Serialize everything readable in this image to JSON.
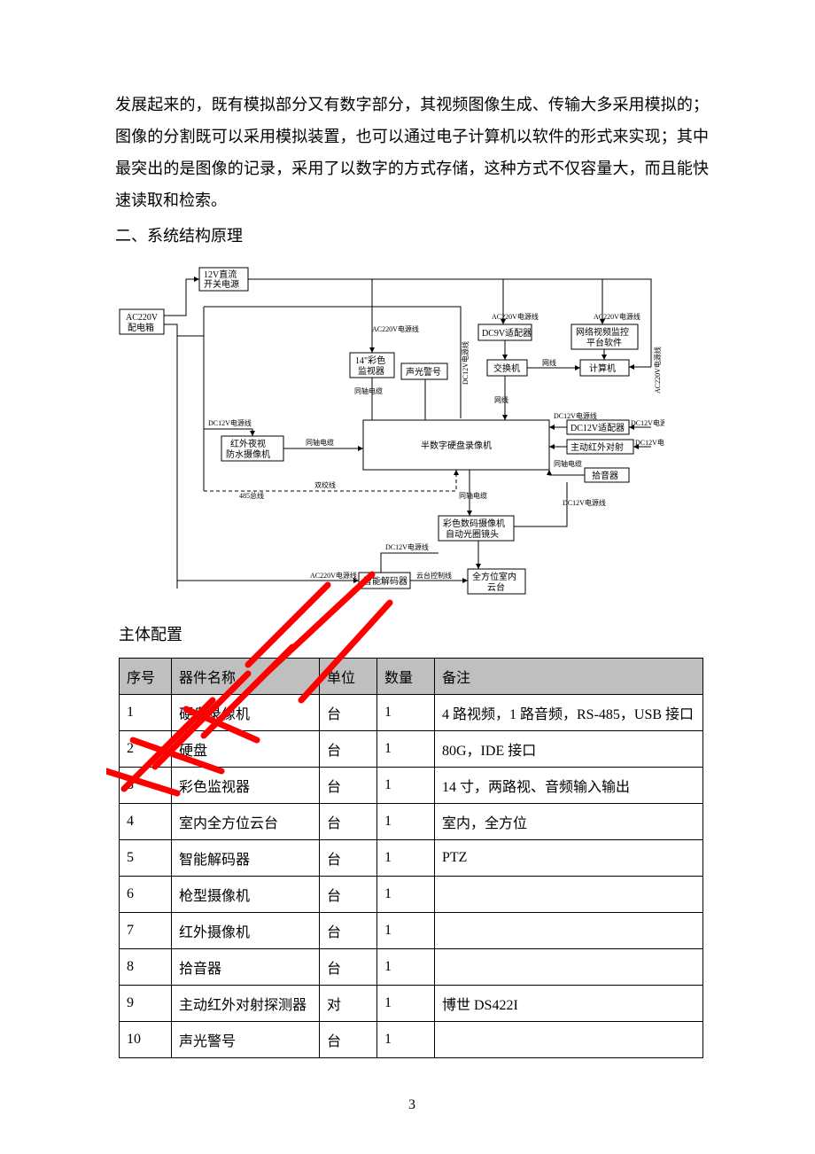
{
  "paragraph": "发展起来的，既有模拟部分又有数字部分，其视频图像生成、传输大多采用模拟的；图像的分割既可以采用模拟装置，也可以通过电子计算机以软件的形式来实现；其中最突出的是图像的记录，采用了以数字的方式存储，这种方式不仅容量大，而且能快速读取和检索。",
  "section_heading": "二、系统结构原理",
  "sub_heading": "主体配置",
  "page_number": "3",
  "diagram": {
    "boxes": {
      "power_box": {
        "label1": "AC220V",
        "label2": "配电箱"
      },
      "dc12v_supply": {
        "label1": "12V直流",
        "label2": "开关电源"
      },
      "monitor": {
        "label1": "14\"彩色",
        "label2": "监视器"
      },
      "alarm_sl": {
        "label": "声光警号"
      },
      "dc9v_adapter": {
        "label": "DC9V适配器"
      },
      "net_software": {
        "label1": "网络视频监控",
        "label2": "平台软件"
      },
      "switch": {
        "label": "交换机"
      },
      "computer": {
        "label": "计算机"
      },
      "ir_cam": {
        "label1": "红外夜视",
        "label2": "防水摄像机"
      },
      "dvr": {
        "label": "半数字硬盘录像机"
      },
      "dc12v_adapter": {
        "label": "DC12V适配器"
      },
      "ir_beam": {
        "label": "主动红外对射"
      },
      "pickup": {
        "label": "拾音器"
      },
      "color_cam": {
        "label1": "彩色数码摄像机",
        "label2": "自动光圈镜头"
      },
      "decoder": {
        "label": "智能解码器"
      },
      "ptz": {
        "label1": "全方位室内",
        "label2": "云台"
      }
    },
    "line_labels": {
      "ac220v_line": "AC220V电源线",
      "dc12v_line": "DC12V电源线",
      "coax": "同轴电缆",
      "net": "网线",
      "rs485": "485总线",
      "twisted": "双绞线",
      "ptz_ctrl": "云台控制线"
    }
  },
  "table": {
    "columns": [
      "序号",
      "器件名称",
      "单位",
      "数量",
      "备注"
    ],
    "header_bg": "#bfbfbf",
    "border_color": "#000000",
    "rows": [
      [
        "1",
        "硬盘录像机",
        "台",
        "1",
        "4 路视频，1 路音频，RS-485，USB 接口"
      ],
      [
        "2",
        "硬盘",
        "台",
        "1",
        "80G，IDE 接口"
      ],
      [
        "3",
        "彩色监视器",
        "台",
        "1",
        "14 寸，两路视、音频输入输出"
      ],
      [
        "4",
        "室内全方位云台",
        "台",
        "1",
        "室内，全方位"
      ],
      [
        "5",
        "智能解码器",
        "台",
        "1",
        "PTZ"
      ],
      [
        "6",
        "枪型摄像机",
        "台",
        "1",
        ""
      ],
      [
        "7",
        "红外摄像机",
        "台",
        "1",
        ""
      ],
      [
        "8",
        "拾音器",
        "台",
        "1",
        ""
      ],
      [
        "9",
        "主动红外对射探测器",
        "对",
        "1",
        "博世 DS422I"
      ],
      [
        "10",
        "声光警号",
        "台",
        "1",
        ""
      ]
    ]
  }
}
